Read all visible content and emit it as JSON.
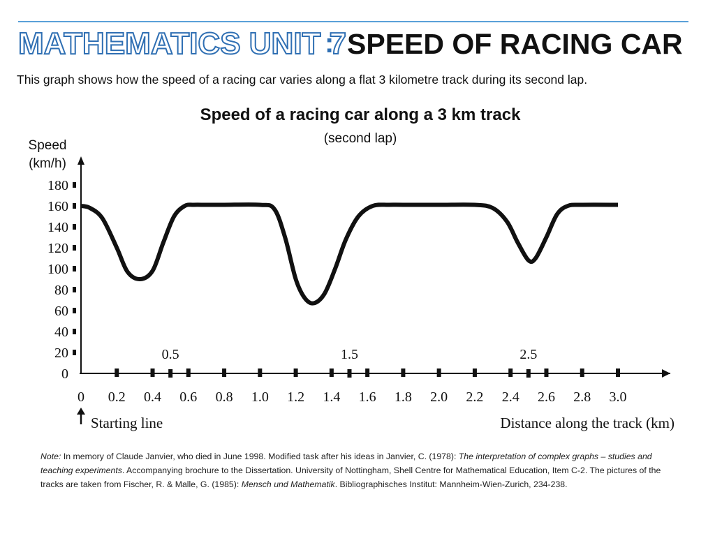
{
  "header": {
    "unit_label": "MATHEMATICS UNIT 7",
    "colon": ":",
    "title": "SPEED OF RACING CAR"
  },
  "intro": "This graph shows how the speed of a racing car varies along a flat 3 kilometre track during its second lap.",
  "note": {
    "lead": "Note:",
    "text1": " In memory of Claude Janvier, who died in June 1998. Modified task after his ideas in Janvier, C. (1978): ",
    "italic1": "The interpretation of complex graphs – studies and teaching experiments",
    "text2": ". Accompanying brochure to the Dissertation. University of Nottingham, Shell Centre for Mathematical Education, Item C-2. The pictures of the tracks are taken from Fischer, R. & Malle, G. (1985): ",
    "italic2": "Mensch und Mathematik",
    "text3": ". Bibliographisches Institut: Mannheim-Wien-Zurich, 234-238."
  },
  "chart_data": {
    "type": "line",
    "title": "Speed of a racing car along a 3 km track",
    "subtitle": "(second lap)",
    "ylabel_line1": "Speed",
    "ylabel_line2": "(km/h)",
    "xlabel": "Distance along the track (km)",
    "start_label": "Starting line",
    "x_ticks": [
      "0",
      "0.2",
      "0.4",
      "0.6",
      "0.8",
      "1.0",
      "1.2",
      "1.4",
      "1.6",
      "1.8",
      "2.0",
      "2.2",
      "2.4",
      "2.6",
      "2.8",
      "3.0"
    ],
    "y_ticks": [
      "0",
      "20",
      "40",
      "60",
      "80",
      "100",
      "120",
      "140",
      "160",
      "180"
    ],
    "above_axis_labels": [
      "0.5",
      "1.5",
      "2.5"
    ],
    "xlim": [
      0,
      3.0
    ],
    "ylim": [
      0,
      180
    ],
    "grid": false,
    "legend": "none",
    "line_color": "#111111",
    "series": [
      {
        "x": [
          0,
          0.05,
          0.12,
          0.2,
          0.26,
          0.33,
          0.4,
          0.46,
          0.52,
          0.58,
          0.63,
          0.7,
          0.8,
          1.0,
          1.08,
          1.14,
          1.2,
          1.25,
          1.3,
          1.36,
          1.42,
          1.48,
          1.55,
          1.63,
          1.72,
          1.8,
          2.0,
          2.2,
          2.3,
          2.38,
          2.44,
          2.5,
          2.54,
          2.6,
          2.66,
          2.72,
          2.8,
          3.0
        ],
        "y": [
          160,
          158,
          148,
          120,
          97,
          90,
          98,
          125,
          150,
          160,
          161,
          161,
          161,
          161,
          157,
          130,
          90,
          72,
          67,
          76,
          100,
          128,
          150,
          160,
          161,
          161,
          161,
          161,
          158,
          145,
          125,
          108,
          110,
          130,
          152,
          160,
          161,
          161
        ]
      }
    ]
  }
}
